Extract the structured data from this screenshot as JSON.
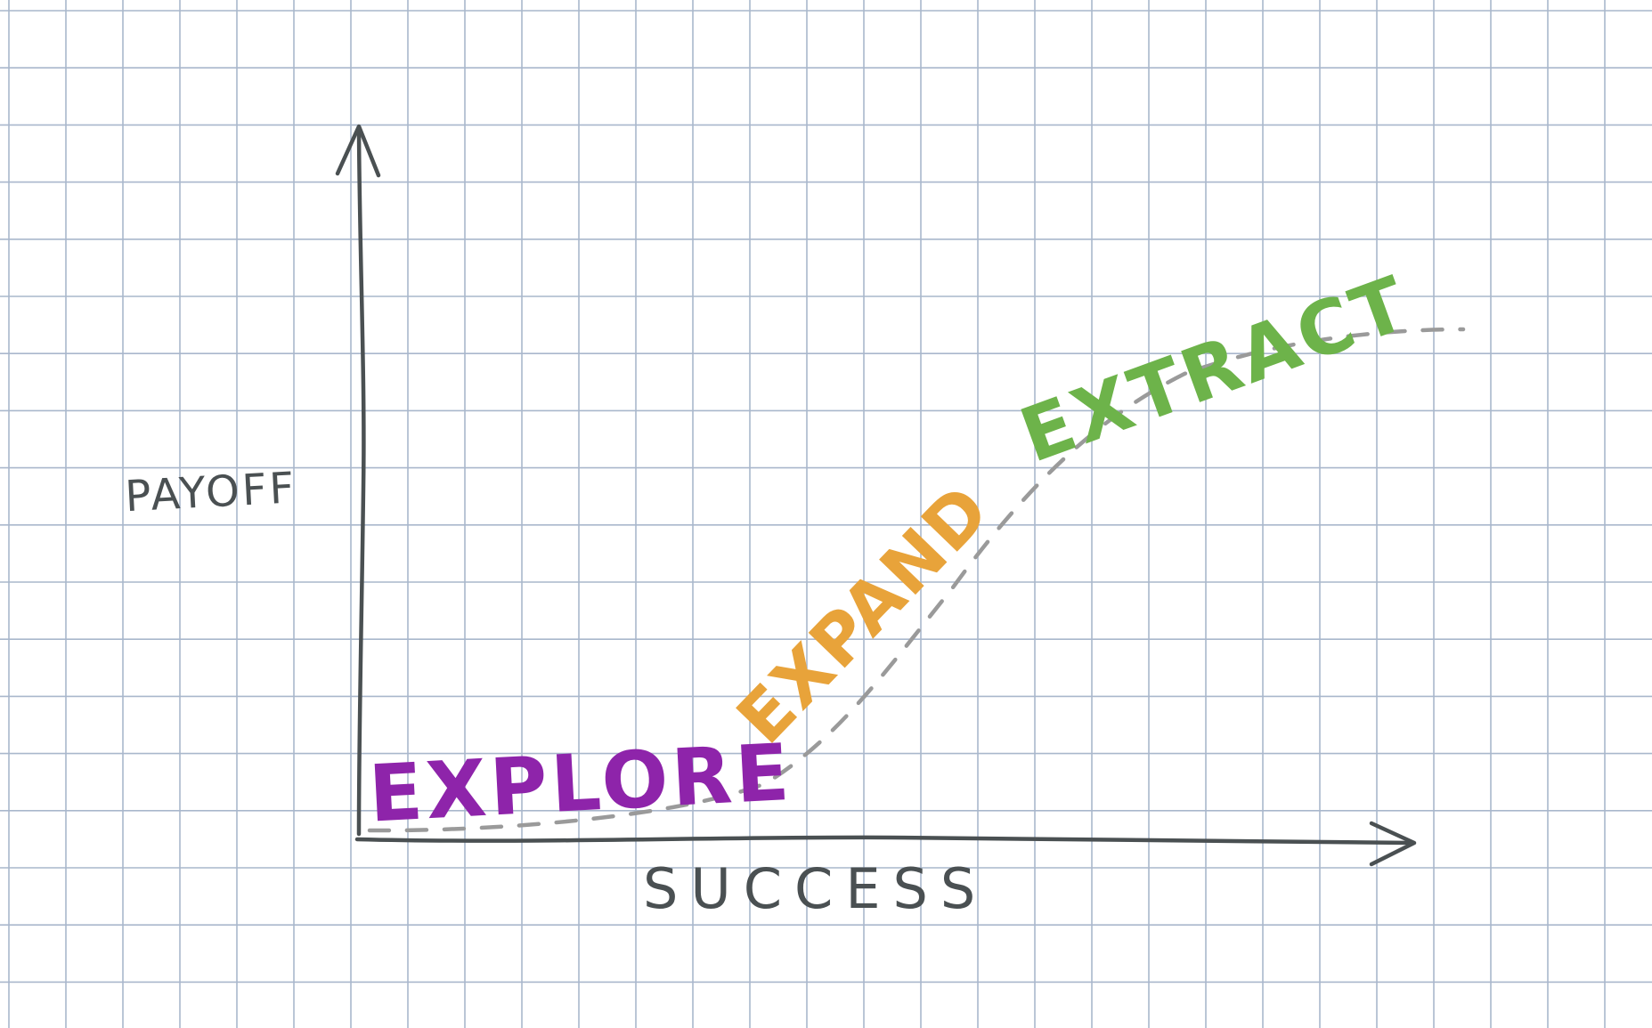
{
  "labels": {
    "y_axis": "PAYOFF",
    "x_axis": "SUCCESS"
  },
  "phases": [
    {
      "label": "EXPLORE",
      "color": "#8e24aa"
    },
    {
      "label": "EXPAND",
      "color": "#e8a33a"
    },
    {
      "label": "EXTRACT",
      "color": "#6db34a"
    }
  ],
  "colors": {
    "grid": "#a9b7cc",
    "axis": "#4a5052",
    "curve": "#9a9a9a",
    "paper": "#ffffff"
  }
}
